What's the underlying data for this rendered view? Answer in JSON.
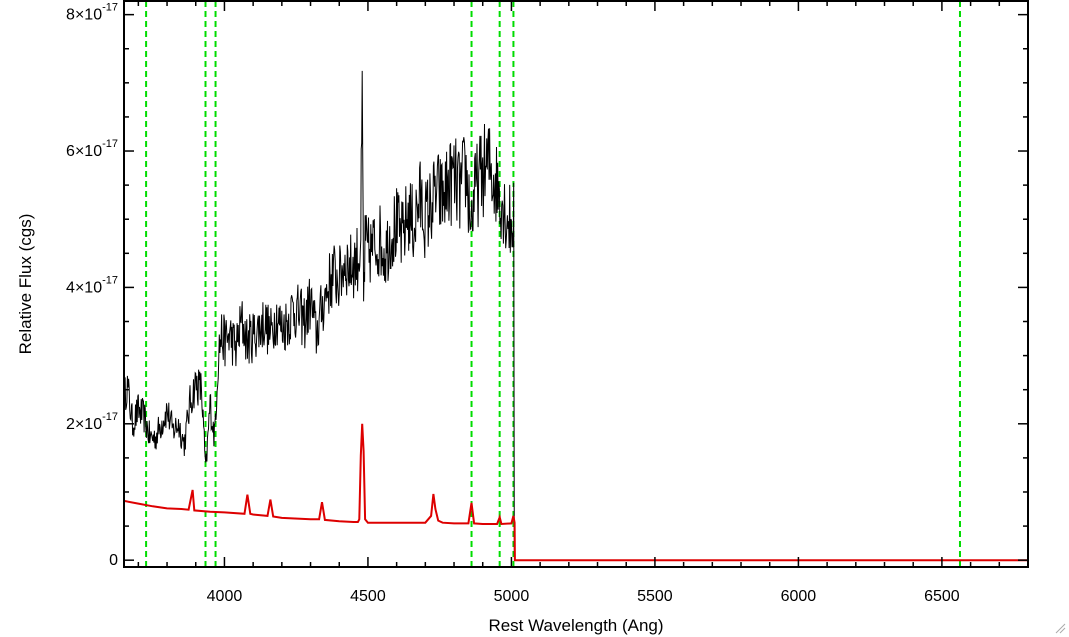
{
  "chart_data": {
    "type": "line",
    "xlabel": "Rest Wavelength (Ang)",
    "ylabel": "Relative Flux (cgs)",
    "xlim": [
      3650,
      6800
    ],
    "ylim": [
      -1e-18,
      8.2e-17
    ],
    "x_ticks": [
      {
        "value": 4000,
        "label": "4000"
      },
      {
        "value": 4500,
        "label": "4500"
      },
      {
        "value": 5000,
        "label": "5000"
      },
      {
        "value": 5500,
        "label": "5500"
      },
      {
        "value": 6000,
        "label": "6000"
      },
      {
        "value": 6500,
        "label": "6500"
      }
    ],
    "y_ticks": [
      {
        "value": 0,
        "mant": "0",
        "exp": ""
      },
      {
        "value": 2e-17,
        "mant": "2×10",
        "exp": "-17"
      },
      {
        "value": 4e-17,
        "mant": "4×10",
        "exp": "-17"
      },
      {
        "value": 6e-17,
        "mant": "6×10",
        "exp": "-17"
      },
      {
        "value": 8e-17,
        "mant": "8×10",
        "exp": "-17"
      }
    ],
    "x_minor_step": 100,
    "y_minor_step": 5e-18,
    "grid": false,
    "vertical_reference_lines": [
      3727,
      3934,
      3969,
      4861,
      4959,
      5007,
      6563
    ],
    "series": [
      {
        "color": "#000000",
        "style": "noisy",
        "x": [
          3650,
          3660,
          3680,
          3700,
          3720,
          3740,
          3760,
          3780,
          3800,
          3820,
          3840,
          3860,
          3880,
          3900,
          3920,
          3935,
          3950,
          3965,
          3980,
          3990,
          4000,
          4020,
          4040,
          4060,
          4080,
          4100,
          4120,
          4140,
          4160,
          4180,
          4200,
          4220,
          4240,
          4260,
          4280,
          4300,
          4320,
          4340,
          4360,
          4380,
          4400,
          4420,
          4440,
          4460,
          4470,
          4475,
          4480,
          4485,
          4490,
          4500,
          4520,
          4540,
          4560,
          4580,
          4600,
          4620,
          4640,
          4660,
          4680,
          4700,
          4720,
          4740,
          4760,
          4780,
          4800,
          4820,
          4840,
          4860,
          4870,
          4880,
          4900,
          4920,
          4940,
          4960,
          4980,
          5000,
          5008,
          5010,
          5011,
          5100,
          5500,
          6000,
          6500,
          6800
        ],
        "y": [
          2.3e-17,
          2.6e-17,
          2e-17,
          2.2e-17,
          2.1e-17,
          1.8e-17,
          1.8e-17,
          2e-17,
          2.2e-17,
          1.9e-17,
          2e-17,
          1.7e-17,
          2.3e-17,
          2.6e-17,
          2.5e-17,
          1.3e-17,
          2.3e-17,
          1.8e-17,
          3.1e-17,
          3.3e-17,
          3.2e-17,
          3.3e-17,
          3.1e-17,
          3.5e-17,
          3.2e-17,
          3.3e-17,
          3.4e-17,
          3.5e-17,
          3.3e-17,
          3.6e-17,
          3.4e-17,
          3.5e-17,
          3.7e-17,
          3.6e-17,
          3.5e-17,
          3.8e-17,
          3.3e-17,
          3.7e-17,
          4e-17,
          4.2e-17,
          4.1e-17,
          4.4e-17,
          4.3e-17,
          4.4e-17,
          4.5e-17,
          4.8e-17,
          6.6e-17,
          3.8e-17,
          4.6e-17,
          4.5e-17,
          4.6e-17,
          4.7e-17,
          4.5e-17,
          4.8e-17,
          4.9e-17,
          4.7e-17,
          5.1e-17,
          4.9e-17,
          5.3e-17,
          5e-17,
          5.2e-17,
          5.4e-17,
          5.3e-17,
          5.5e-17,
          5.6e-17,
          5.4e-17,
          5.7e-17,
          5e-17,
          5.3e-17,
          5.5e-17,
          5.7e-17,
          5.8e-17,
          5.6e-17,
          5.4e-17,
          5.1e-17,
          4.9e-17,
          5.1e-17,
          1e-18,
          0,
          0,
          0,
          0,
          0,
          0
        ]
      },
      {
        "color": "#dd0000",
        "style": "smooth",
        "x": [
          3650,
          3700,
          3750,
          3800,
          3850,
          3875,
          3889,
          3895,
          3950,
          4000,
          4070,
          4080,
          4090,
          4100,
          4150,
          4160,
          4170,
          4200,
          4300,
          4330,
          4340,
          4350,
          4400,
          4450,
          4465,
          4470,
          4475,
          4480,
          4485,
          4490,
          4500,
          4600,
          4700,
          4720,
          4728,
          4735,
          4745,
          4760,
          4800,
          4850,
          4861,
          4870,
          4900,
          4950,
          4959,
          4965,
          5000,
          5007,
          5011,
          5012,
          5100,
          5500,
          6000,
          6500,
          6800
        ],
        "y": [
          8.7e-18,
          8.3e-18,
          7.9e-18,
          7.6e-18,
          7.5e-18,
          7.4e-18,
          1.03e-17,
          7.3e-18,
          7.1e-18,
          7e-18,
          6.8e-18,
          9.6e-18,
          6.8e-18,
          6.7e-18,
          6.5e-18,
          8.9e-18,
          6.4e-18,
          6.2e-18,
          6e-18,
          6e-18,
          8.5e-18,
          5.9e-18,
          5.7e-18,
          5.6e-18,
          5.6e-18,
          6e-18,
          1.53e-17,
          2e-17,
          1.6e-17,
          6e-18,
          5.5e-18,
          5.5e-18,
          5.5e-18,
          6.5e-18,
          9.7e-18,
          7.5e-18,
          5.8e-18,
          5.5e-18,
          5.4e-18,
          5.4e-18,
          8.4e-18,
          5.4e-18,
          5.3e-18,
          5.3e-18,
          6.3e-18,
          5.3e-18,
          5.4e-18,
          6.5e-18,
          5.5e-18,
          0,
          0,
          0,
          0,
          0,
          0
        ]
      }
    ]
  }
}
